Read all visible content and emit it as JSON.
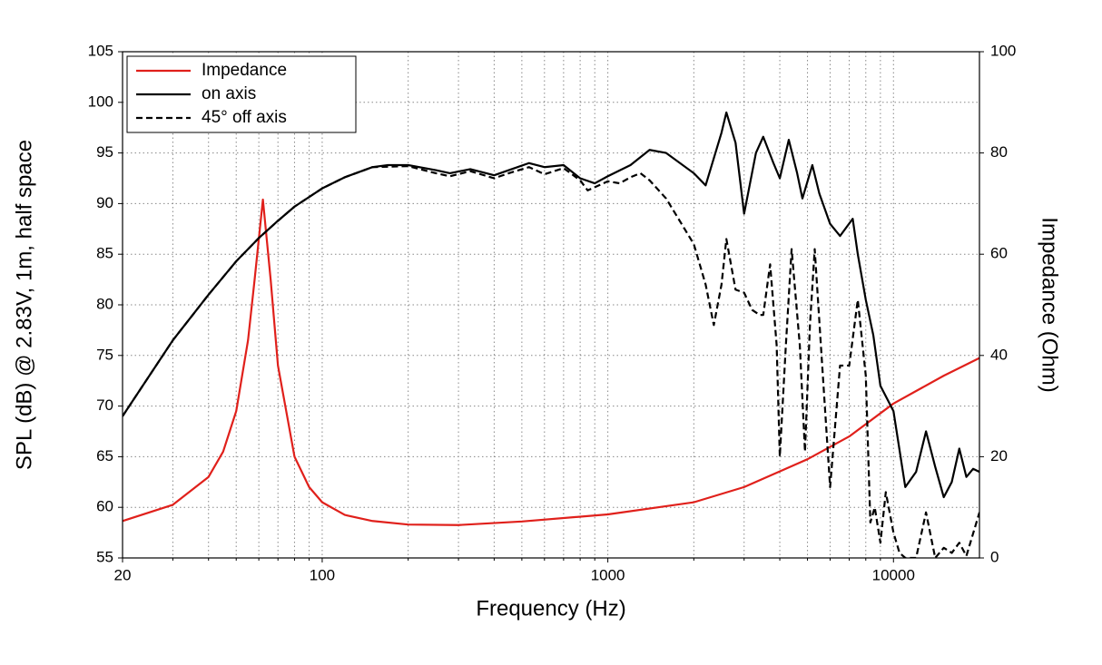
{
  "chart_data": {
    "type": "line",
    "xlabel": "Frequency (Hz)",
    "ylabel": "SPL (dB) @ 2.83V, 1m, half space",
    "y2label": "Impedance (Ohm)",
    "xscale": "log",
    "xlim": [
      20,
      20000
    ],
    "xticks": [
      20,
      100,
      1000,
      10000
    ],
    "xminorticks": [
      30,
      40,
      50,
      60,
      70,
      80,
      90,
      200,
      300,
      400,
      500,
      600,
      700,
      800,
      900,
      2000,
      3000,
      4000,
      5000,
      6000,
      7000,
      8000,
      9000
    ],
    "ylim": [
      55,
      105
    ],
    "yticks": [
      55,
      60,
      65,
      70,
      75,
      80,
      85,
      90,
      95,
      100,
      105
    ],
    "y2lim": [
      0,
      100
    ],
    "y2ticks": [
      0,
      20,
      40,
      60,
      80,
      100
    ],
    "grid": true,
    "legend": "upper left",
    "series": [
      {
        "name": "Impedance",
        "color": "#e0201b",
        "dash": false,
        "axis": "y2",
        "x": [
          20,
          30,
          40,
          45,
          50,
          55,
          58,
          62,
          66,
          70,
          80,
          90,
          100,
          120,
          150,
          200,
          300,
          500,
          1000,
          2000,
          3000,
          5000,
          7000,
          10000,
          15000,
          20000
        ],
        "values": [
          7.3,
          10.5,
          16,
          21,
          29,
          43,
          55,
          70.8,
          55,
          38,
          20,
          14,
          11,
          8.5,
          7.3,
          6.6,
          6.5,
          7.2,
          8.6,
          11,
          14,
          19.5,
          24,
          30.5,
          36,
          39.5
        ]
      },
      {
        "name": "on axis",
        "color": "#000000",
        "dash": false,
        "x": [
          20,
          30,
          40,
          50,
          60,
          70,
          80,
          100,
          120,
          150,
          170,
          200,
          250,
          280,
          330,
          400,
          450,
          530,
          600,
          700,
          800,
          900,
          1000,
          1200,
          1400,
          1600,
          2000,
          2200,
          2500,
          2600,
          2800,
          3000,
          3300,
          3500,
          3800,
          4000,
          4300,
          4600,
          4800,
          5200,
          5500,
          6000,
          6500,
          7200,
          7500,
          8000,
          8500,
          9000,
          10000,
          11000,
          12000,
          13000,
          14000,
          15000,
          16000,
          17000,
          18000,
          19000,
          20000
        ],
        "values": [
          69,
          76.5,
          81,
          84.3,
          86.6,
          88.3,
          89.7,
          91.5,
          92.6,
          93.6,
          93.8,
          93.8,
          93.3,
          93.0,
          93.4,
          92.8,
          93.3,
          94.0,
          93.6,
          93.8,
          92.5,
          92.0,
          92.7,
          93.8,
          95.3,
          95.0,
          93.0,
          91.8,
          97.0,
          99.0,
          96.0,
          89.0,
          95.0,
          96.6,
          94.0,
          92.5,
          96.3,
          93.0,
          90.5,
          93.8,
          91.0,
          88.0,
          86.8,
          88.5,
          85.0,
          80.5,
          77.0,
          72.0,
          69.5,
          62.0,
          63.5,
          67.5,
          64.0,
          61.0,
          62.5,
          65.8,
          63.0,
          63.8,
          63.5
        ]
      },
      {
        "name": "45° off axis",
        "color": "#000000",
        "dash": true,
        "x": [
          20,
          30,
          40,
          50,
          60,
          70,
          80,
          100,
          120,
          150,
          200,
          250,
          280,
          330,
          400,
          450,
          530,
          600,
          700,
          800,
          850,
          1000,
          1100,
          1200,
          1300,
          1400,
          1600,
          2000,
          2200,
          2350,
          2500,
          2600,
          2800,
          3000,
          3200,
          3400,
          3500,
          3700,
          3900,
          4000,
          4200,
          4400,
          4700,
          4900,
          5100,
          5300,
          5600,
          6000,
          6500,
          7000,
          7500,
          8000,
          8300,
          8600,
          9000,
          9400,
          10000,
          10500,
          11000,
          12000,
          13000,
          14000,
          15000,
          16000,
          17000,
          18000,
          20000
        ],
        "values": [
          69,
          76.5,
          81,
          84.3,
          86.6,
          88.3,
          89.7,
          91.5,
          92.6,
          93.6,
          93.7,
          93.0,
          92.7,
          93.2,
          92.5,
          93.0,
          93.6,
          92.9,
          93.5,
          92.3,
          91.3,
          92.2,
          92.0,
          92.6,
          93.0,
          92.3,
          90.5,
          86.0,
          82.0,
          78.0,
          82,
          86.5,
          81.5,
          81.2,
          79.5,
          79,
          79,
          84,
          76.0,
          65.0,
          76,
          85.5,
          76,
          65.5,
          78,
          85.5,
          75,
          62.0,
          74,
          74.0,
          80.5,
          73,
          58.5,
          60,
          56.5,
          61.5,
          57.5,
          55.5,
          55.0,
          55.0,
          59.5,
          55,
          56,
          55.5,
          56.5,
          55.2,
          59.5
        ]
      }
    ]
  }
}
